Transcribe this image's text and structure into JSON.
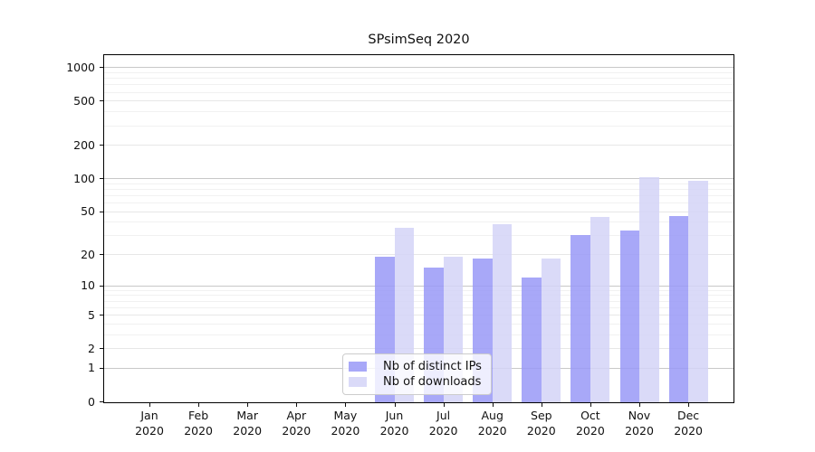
{
  "chart_data": {
    "type": "bar",
    "title": "SPsimSeq 2020",
    "yscale": "log1p",
    "ylim": [
      0,
      1200
    ],
    "grid": "horizontal",
    "legend_position": "lower-center",
    "categories": [
      "Jan 2020",
      "Feb 2020",
      "Mar 2020",
      "Apr 2020",
      "May 2020",
      "Jun 2020",
      "Jul 2020",
      "Aug 2020",
      "Sep 2020",
      "Oct 2020",
      "Nov 2020",
      "Dec 2020"
    ],
    "y_ticks": [
      0,
      1,
      2,
      5,
      10,
      20,
      50,
      100,
      200,
      500,
      1000
    ],
    "series": [
      {
        "name": "Nb of distinct IPs",
        "color": "#9999f7",
        "opacity": 0.85,
        "values": [
          0,
          0,
          0,
          0,
          0,
          19,
          15,
          18,
          12,
          30,
          33,
          45
        ]
      },
      {
        "name": "Nb of downloads",
        "color": "#d4d4f7",
        "opacity": 0.85,
        "values": [
          0,
          0,
          0,
          0,
          0,
          35,
          19,
          38,
          18,
          44,
          103,
          95
        ]
      }
    ],
    "colors": {
      "major_grid": "#c8c8c8",
      "labeled_grid": "#e7e7e7",
      "minor_grid": "#f1f1f1",
      "axis": "#000000"
    }
  }
}
